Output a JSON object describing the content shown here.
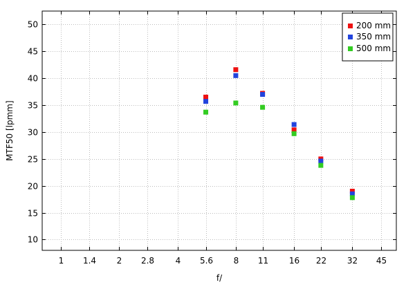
{
  "chart_data": {
    "type": "scatter",
    "xlabel": "f/",
    "ylabel": "MTF50 [lpmm]",
    "x_ticks": [
      "1",
      "1.4",
      "2",
      "2.8",
      "4",
      "5.6",
      "8",
      "11",
      "16",
      "22",
      "32",
      "45"
    ],
    "x_scale": "log",
    "xlim": [
      0.8,
      54
    ],
    "ylim": [
      8,
      52.5
    ],
    "y_ticks": [
      10,
      15,
      20,
      25,
      30,
      35,
      40,
      45,
      50
    ],
    "grid": true,
    "legend_position": "top-right",
    "series": [
      {
        "name": "200 mm",
        "color": "#ee1111",
        "points": [
          [
            5.6,
            36.5
          ],
          [
            8,
            41.6
          ],
          [
            11,
            37.2
          ],
          [
            16,
            30.4
          ],
          [
            22,
            25.0
          ],
          [
            32,
            19.0
          ]
        ]
      },
      {
        "name": "350 mm",
        "color": "#2244dd",
        "points": [
          [
            5.6,
            35.7
          ],
          [
            8,
            40.5
          ],
          [
            11,
            37.0
          ],
          [
            16,
            31.4
          ],
          [
            22,
            24.6
          ],
          [
            32,
            18.5
          ]
        ]
      },
      {
        "name": "500 mm",
        "color": "#33cc22",
        "points": [
          [
            5.6,
            33.7
          ],
          [
            8,
            35.4
          ],
          [
            11,
            34.6
          ],
          [
            16,
            29.7
          ],
          [
            22,
            23.8
          ],
          [
            32,
            17.8
          ]
        ]
      }
    ]
  }
}
